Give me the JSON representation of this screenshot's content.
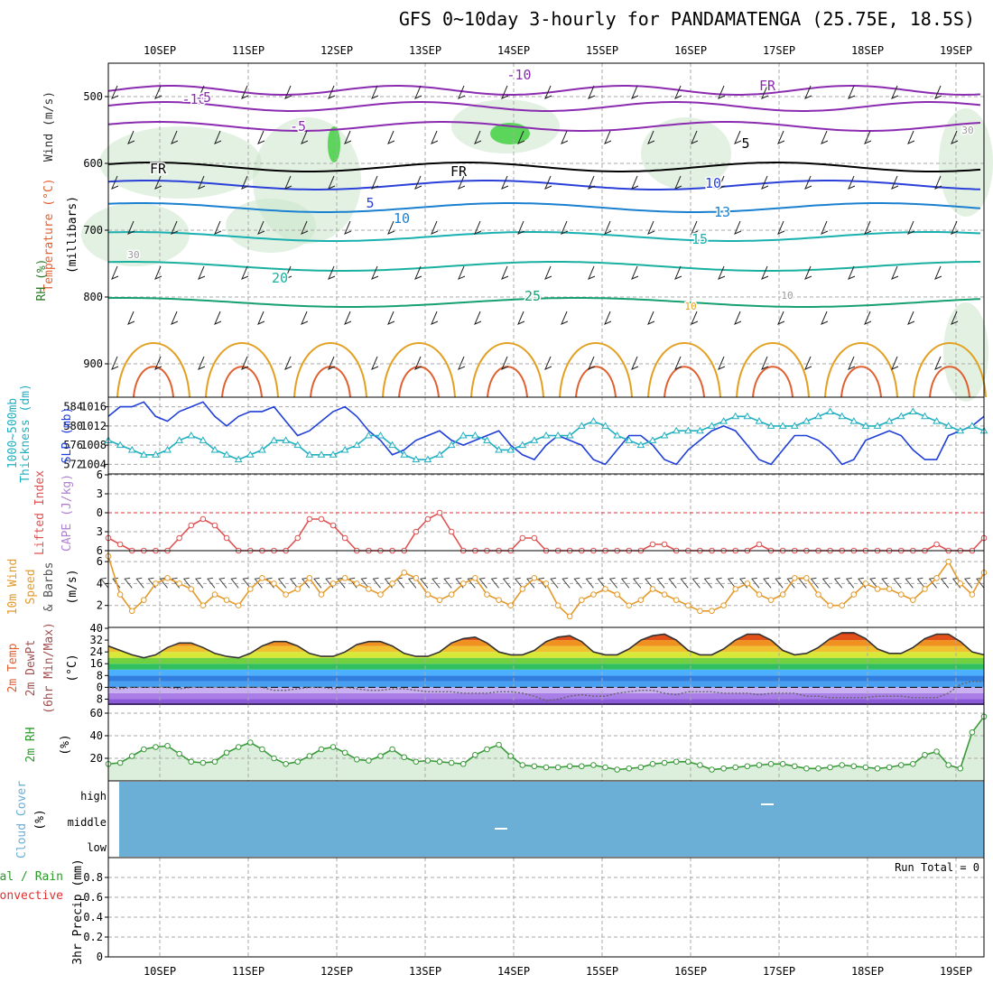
{
  "header": {
    "title": "GFS 0~10day 3-hourly for PANDAMATENGA (25.75E, 18.5S)"
  },
  "dates": [
    "10SEP",
    "11SEP",
    "12SEP",
    "13SEP",
    "14SEP",
    "15SEP",
    "16SEP",
    "17SEP",
    "18SEP",
    "19SEP"
  ],
  "colors": {
    "grid": "#aaaaaa",
    "cloud": "#6baed6",
    "rh": "#7fcf7f",
    "cape_zero": "#e03030"
  },
  "panel_labels": {
    "profile_wind": "Wind (m/s)",
    "profile_temp": "Temperature (°C)",
    "profile_rh": "RH (%)",
    "profile_units": "(millibars)",
    "thk_a": "1000~500mb",
    "thk_b": "Thickness (dm)",
    "slp": "SLP (mb)",
    "li": "Lifted Index",
    "cape": "CAPE (J/kg)",
    "wind_a": "10m Wind",
    "wind_b": "Speed",
    "wind_c": "& Barbs",
    "wind_unit": "(m/s)",
    "temp_a": "2m Temp",
    "temp_b": "2m DewPt",
    "temp_c": "(6hr Min/Max)",
    "temp_unit": "(°C)",
    "rh_a": "2m RH",
    "rh_unit": "(%)",
    "cloud_a": "Cloud Cover",
    "cloud_unit": "(%)",
    "precip_a": "Total / Rain",
    "precip_b": "Convective",
    "precip_c": "3hr Precip (mm)",
    "run_total": "Run Total = 0"
  },
  "chart_data": [
    {
      "type": "contour",
      "title": "",
      "ylabel": "millibars",
      "y_ticks": [
        500,
        600,
        700,
        800,
        900
      ],
      "contour_labels": [
        "-10",
        "-10",
        "-5",
        "-5",
        "FR",
        "FR",
        "FR",
        "5",
        "5",
        "10",
        "10",
        "13",
        "15",
        "20",
        "25",
        "10",
        "10",
        "30",
        "30"
      ]
    },
    {
      "type": "line",
      "ylabel_left": "1000~500mb Thickness (dm)",
      "ylabel_right": "SLP (mb)",
      "y_ticks_left": [
        572,
        576,
        580,
        584
      ],
      "y_ticks_right": [
        1004,
        1008,
        1012,
        1016
      ],
      "series": [
        {
          "name": "SLP",
          "color": "#1f3fd8",
          "values": [
            1014,
            1016,
            1016,
            1017,
            1014,
            1013,
            1015,
            1016,
            1017,
            1014,
            1012,
            1014,
            1015,
            1015,
            1016,
            1013,
            1010,
            1011,
            1013,
            1015,
            1016,
            1014,
            1011,
            1009,
            1006,
            1007,
            1009,
            1010,
            1011,
            1009,
            1008,
            1009,
            1010,
            1011,
            1008,
            1006,
            1005,
            1008,
            1010,
            1009,
            1008,
            1005,
            1004,
            1007,
            1010,
            1010,
            1008,
            1005,
            1004,
            1007,
            1009,
            1011,
            1012,
            1011,
            1008,
            1005,
            1004,
            1007,
            1010,
            1010,
            1009,
            1007,
            1004,
            1005,
            1009,
            1010,
            1011,
            1010,
            1007,
            1005,
            1005,
            1010,
            1011,
            1012,
            1014
          ]
        },
        {
          "name": "Thickness",
          "color": "#20b0c0",
          "values": [
            577,
            576,
            575,
            574,
            574,
            575,
            577,
            578,
            577,
            575,
            574,
            573,
            574,
            575,
            577,
            577,
            576,
            574,
            574,
            574,
            575,
            576,
            578,
            578,
            576,
            574,
            573,
            573,
            574,
            576,
            578,
            578,
            577,
            575,
            575,
            576,
            577,
            578,
            578,
            578,
            580,
            581,
            580,
            578,
            577,
            576,
            577,
            578,
            579,
            579,
            579,
            580,
            581,
            582,
            582,
            581,
            580,
            580,
            580,
            581,
            582,
            583,
            582,
            581,
            580,
            580,
            581,
            582,
            583,
            582,
            581,
            580,
            579,
            580,
            579
          ]
        }
      ]
    },
    {
      "type": "line",
      "ylabel": "Lifted Index / CAPE",
      "y_ticks": [
        -6,
        -3,
        0,
        3,
        6
      ],
      "series": [
        {
          "name": "Lifted Index",
          "color": "#e05050",
          "values": [
            4,
            5,
            6,
            6,
            6,
            6,
            4,
            2,
            1,
            2,
            4,
            6,
            6,
            6,
            6,
            6,
            4,
            1,
            1,
            2,
            4,
            6,
            6,
            6,
            6,
            6,
            3,
            1,
            0,
            3,
            6,
            6,
            6,
            6,
            6,
            4,
            4,
            6,
            6,
            6,
            6,
            6,
            6,
            6,
            6,
            6,
            5,
            5,
            6,
            6,
            6,
            6,
            6,
            6,
            6,
            5,
            6,
            6,
            6,
            6,
            6,
            6,
            6,
            6,
            6,
            6,
            6,
            6,
            6,
            6,
            5,
            6,
            6,
            6,
            4
          ]
        }
      ]
    },
    {
      "type": "line",
      "ylabel": "10m Wind Speed & Barbs (m/s)",
      "y_ticks": [
        2,
        4,
        6
      ],
      "series": [
        {
          "name": "Wind Speed",
          "color": "#e39a2a",
          "values": [
            6.5,
            3.0,
            1.5,
            2.5,
            4.0,
            4.5,
            4.0,
            3.5,
            2.0,
            3.0,
            2.5,
            2.0,
            3.5,
            4.5,
            4.0,
            3.0,
            3.5,
            4.5,
            3.0,
            4.0,
            4.5,
            4.0,
            3.5,
            3.0,
            4.0,
            5.0,
            4.5,
            3.0,
            2.5,
            3.0,
            4.0,
            4.5,
            3.0,
            2.5,
            2.0,
            3.5,
            4.5,
            4.0,
            2.0,
            1.0,
            2.5,
            3.0,
            3.5,
            3.0,
            2.0,
            2.5,
            3.5,
            3.0,
            2.5,
            2.0,
            1.5,
            1.5,
            2.0,
            3.5,
            4.0,
            3.0,
            2.5,
            3.0,
            4.5,
            4.5,
            3.0,
            2.0,
            2.0,
            3.0,
            4.0,
            3.5,
            3.5,
            3.0,
            2.5,
            3.5,
            4.5,
            6.0,
            4.0,
            3.0,
            5.0
          ]
        }
      ]
    },
    {
      "type": "area",
      "ylabel": "2m Temp / DewPt (°C)",
      "y_ticks": [
        -8,
        0,
        8,
        16,
        24,
        32,
        40
      ],
      "series": [
        {
          "name": "2m Temp",
          "color": "#333333",
          "values": [
            28,
            25,
            22,
            20,
            22,
            27,
            30,
            30,
            27,
            23,
            21,
            20,
            23,
            28,
            31,
            31,
            28,
            23,
            21,
            21,
            24,
            29,
            31,
            31,
            28,
            23,
            21,
            21,
            24,
            30,
            33,
            34,
            30,
            24,
            22,
            22,
            25,
            31,
            34,
            35,
            31,
            24,
            22,
            22,
            26,
            32,
            35,
            36,
            32,
            25,
            22,
            22,
            26,
            32,
            36,
            36,
            32,
            25,
            22,
            23,
            27,
            33,
            37,
            37,
            33,
            26,
            23,
            23,
            27,
            33,
            36,
            36,
            31,
            24,
            22
          ]
        },
        {
          "name": "2m DewPt",
          "color": "#666666",
          "values": [
            0,
            -1,
            0,
            0,
            0,
            0,
            -1,
            0,
            0,
            0,
            0,
            0,
            0,
            0,
            -2,
            -2,
            -1,
            0,
            0,
            -1,
            0,
            -1,
            -2,
            -2,
            -1,
            -1,
            -2,
            -3,
            -3,
            -3,
            -4,
            -4,
            -4,
            -3,
            -3,
            -4,
            -6,
            -9,
            -8,
            -6,
            -5,
            -6,
            -6,
            -4,
            -3,
            -2,
            -2,
            -4,
            -5,
            -3,
            -3,
            -3,
            -4,
            -4,
            -4,
            -5,
            -4,
            -4,
            -4,
            -6,
            -6,
            -7,
            -7,
            -7,
            -7,
            -6,
            -6,
            -6,
            -7,
            -7,
            -7,
            -4,
            2,
            4,
            4
          ]
        }
      ]
    },
    {
      "type": "area",
      "ylabel": "2m RH (%)",
      "y_ticks": [
        20,
        40,
        60
      ],
      "series": [
        {
          "name": "2m RH",
          "color": "#3a9a3a",
          "values": [
            15,
            16,
            22,
            28,
            30,
            31,
            24,
            17,
            16,
            17,
            25,
            30,
            34,
            28,
            20,
            15,
            17,
            22,
            28,
            30,
            25,
            19,
            18,
            22,
            28,
            21,
            17,
            18,
            17,
            16,
            15,
            23,
            28,
            32,
            22,
            14,
            13,
            12,
            12,
            13,
            13,
            14,
            12,
            10,
            11,
            12,
            15,
            16,
            17,
            17,
            14,
            10,
            11,
            12,
            13,
            14,
            15,
            15,
            13,
            11,
            11,
            12,
            14,
            13,
            12,
            11,
            12,
            14,
            15,
            23,
            26,
            14,
            11,
            43,
            57
          ]
        }
      ]
    },
    {
      "type": "heatmap",
      "ylabel": "Cloud Cover (%)",
      "categories": [
        "high",
        "middle",
        "low"
      ]
    },
    {
      "type": "bar",
      "ylabel": "3hr Precip (mm)",
      "y_ticks": [
        0,
        0.2,
        0.4,
        0.6,
        0.8
      ],
      "ylim": [
        0,
        1
      ]
    }
  ]
}
